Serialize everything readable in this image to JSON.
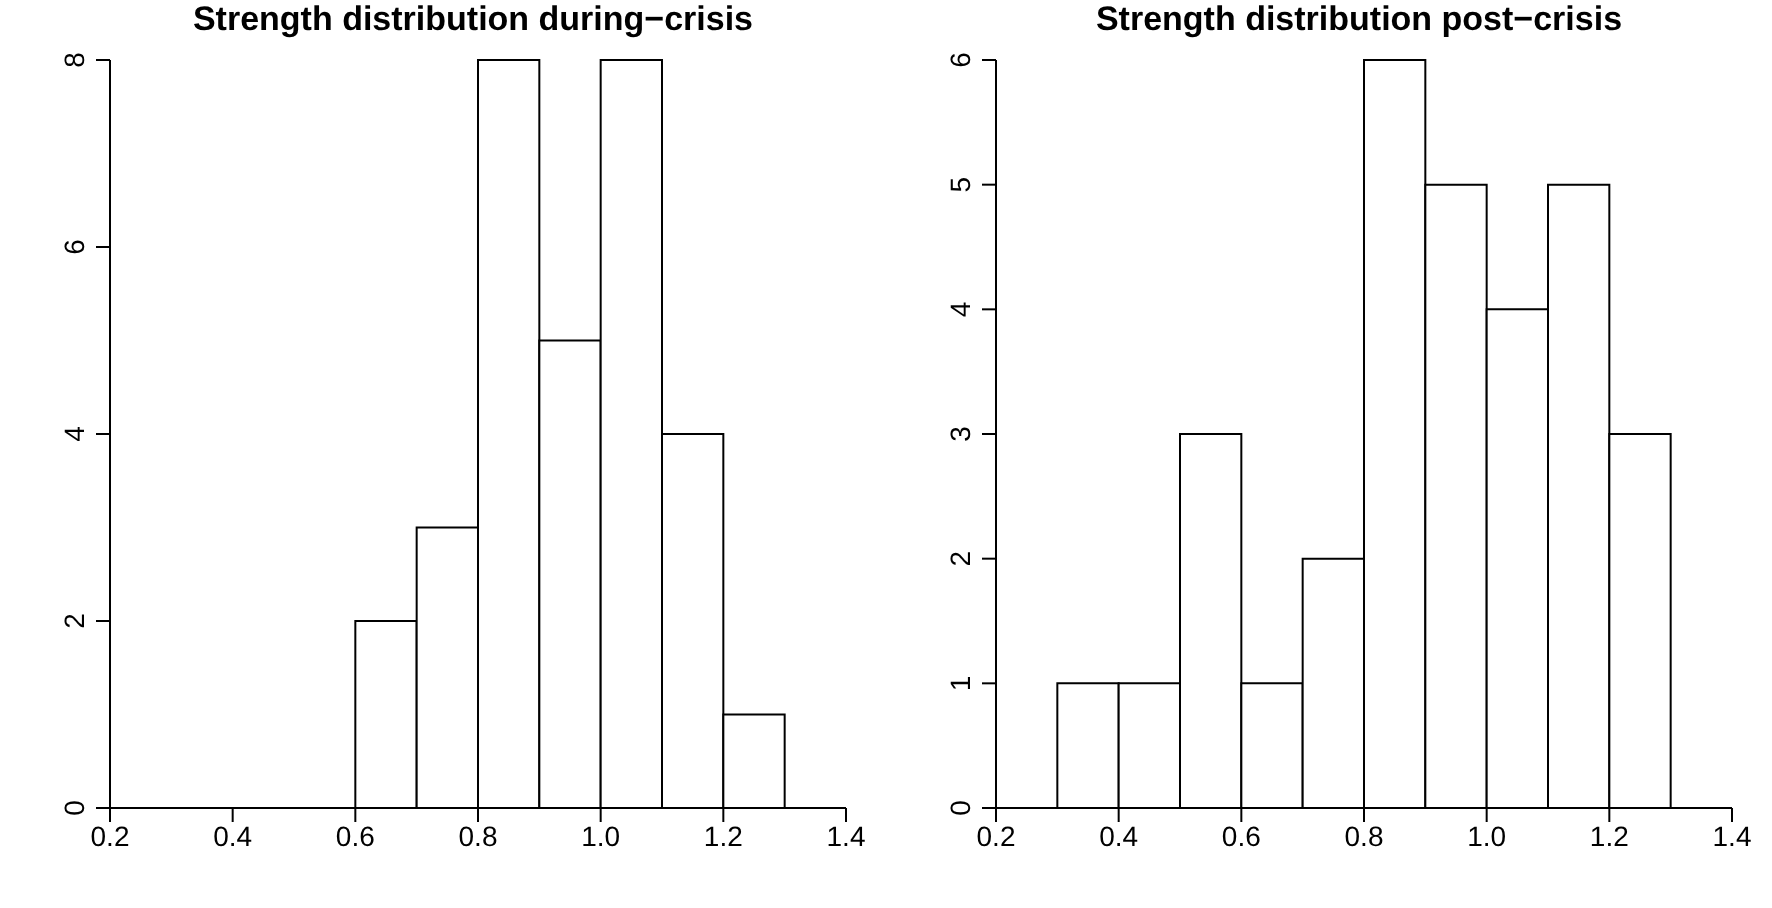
{
  "chart_data": [
    {
      "type": "histogram",
      "title": "Strength distribution during−crisis",
      "bins": [
        0.6,
        0.7,
        0.8,
        0.9,
        1.0,
        1.1,
        1.2,
        1.3
      ],
      "values": [
        2,
        3,
        8,
        5,
        8,
        4,
        1
      ],
      "color": "#ffffff",
      "xlim": [
        0.2,
        1.4
      ],
      "xticks": [
        0.2,
        0.4,
        0.6,
        0.8,
        {
          "value": 1,
          "label": "1.0"
        },
        1.2,
        1.4
      ],
      "ylim": [
        0,
        8
      ],
      "yticks": [
        0,
        2,
        4,
        6,
        8
      ]
    },
    {
      "type": "histogram",
      "title": "Strength distribution post−crisis",
      "bins": [
        0.3,
        0.4,
        0.5,
        0.6,
        0.7,
        0.8,
        0.9,
        1.0,
        1.1,
        1.2,
        1.3
      ],
      "values": [
        1,
        1,
        3,
        1,
        2,
        6,
        5,
        4,
        5,
        3
      ],
      "color": "#ffffff",
      "xlim": [
        0.2,
        1.4
      ],
      "xticks": [
        0.2,
        0.4,
        0.6,
        0.8,
        {
          "value": 1,
          "label": "1.0"
        },
        1.2,
        1.4
      ],
      "ylim": [
        0,
        6
      ],
      "yticks": [
        0,
        1,
        2,
        3,
        4,
        5,
        6
      ]
    }
  ]
}
